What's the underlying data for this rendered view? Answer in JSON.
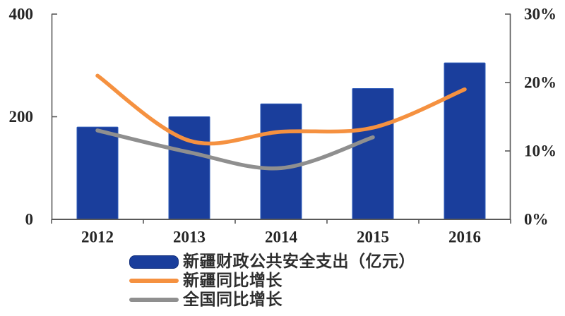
{
  "chart_data": {
    "type": "bar",
    "combo": "bar+line",
    "title": "",
    "categories": [
      "2012",
      "2013",
      "2014",
      "2015",
      "2016"
    ],
    "series": [
      {
        "name": "新疆财政公共安全支出（亿元）",
        "type": "bar",
        "axis": "left",
        "color": "#1A3E9C",
        "values": [
          180,
          200,
          225,
          255,
          305
        ]
      },
      {
        "name": "新疆同比增长",
        "type": "line",
        "axis": "right",
        "color": "#F59140",
        "values": [
          21,
          11.5,
          12.8,
          13.4,
          19
        ]
      },
      {
        "name": "全国同比增长",
        "type": "line",
        "axis": "right",
        "color": "#8F8F8F",
        "values": [
          13,
          9.8,
          7.5,
          12,
          null
        ]
      }
    ],
    "left_axis": {
      "min": 0,
      "max": 400,
      "ticks": [
        0,
        200,
        400
      ],
      "tick_labels": [
        "0",
        "200",
        "400"
      ]
    },
    "right_axis": {
      "min": 0,
      "max": 30,
      "ticks": [
        0,
        10,
        20,
        30
      ],
      "tick_labels": [
        "0%",
        "10%",
        "20%",
        "30%"
      ]
    },
    "grid": false,
    "legend_position": "bottom-left",
    "axis_color": "#595959",
    "text_color": "#262626"
  }
}
